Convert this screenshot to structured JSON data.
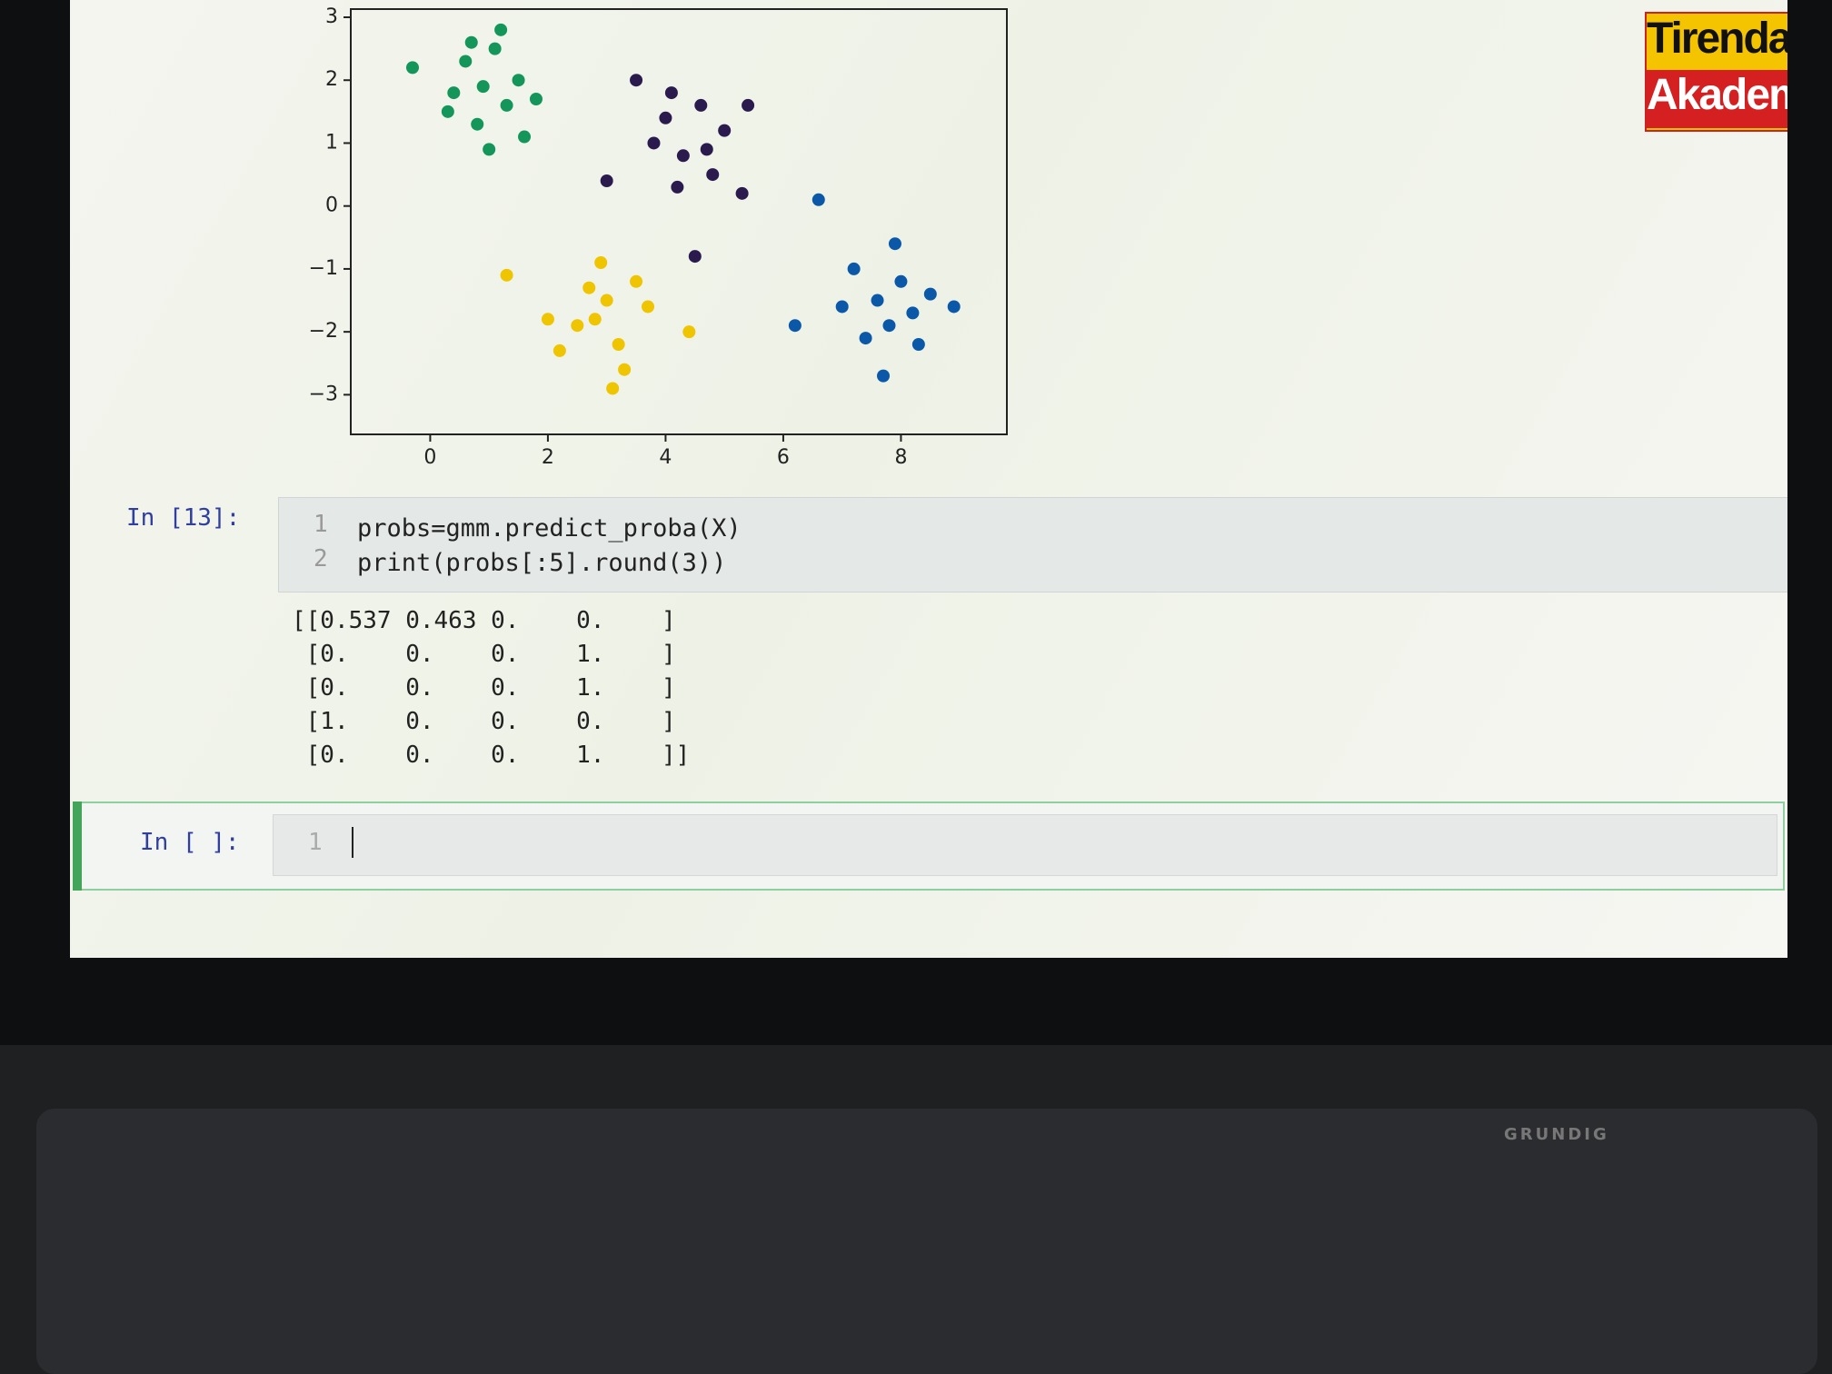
{
  "plot": {
    "type": "scatter",
    "xlim": [
      -1.35,
      9.8
    ],
    "ylim": [
      -3.63,
      3.13
    ],
    "xticks": [
      0,
      2,
      4,
      6,
      8
    ],
    "yticks": [
      3,
      2,
      1,
      0,
      {
        "value": -1,
        "label": "−1"
      },
      {
        "value": -2,
        "label": "−2"
      },
      {
        "value": -3,
        "label": "−3"
      }
    ],
    "series": [
      {
        "color": "#14955a",
        "x": [
          0.6,
          0.9,
          1.1,
          1.3,
          0.8,
          1.5,
          0.4,
          1.0,
          1.2,
          0.7,
          1.6,
          -0.3,
          0.3,
          1.8
        ],
        "y": [
          2.3,
          1.9,
          2.5,
          1.6,
          1.3,
          2.0,
          1.8,
          0.9,
          2.8,
          2.6,
          1.1,
          2.2,
          1.5,
          1.7
        ]
      },
      {
        "color": "#2b1a4d",
        "x": [
          3.5,
          4.0,
          4.3,
          4.6,
          5.0,
          4.2,
          3.8,
          4.8,
          5.3,
          4.5,
          3.0,
          4.1,
          5.4,
          4.7
        ],
        "y": [
          2.0,
          1.4,
          0.8,
          1.6,
          1.2,
          0.3,
          1.0,
          0.5,
          0.2,
          -0.8,
          0.4,
          1.8,
          1.6,
          0.9
        ]
      },
      {
        "color": "#efc400",
        "x": [
          2.8,
          3.0,
          3.2,
          2.5,
          3.5,
          2.2,
          3.7,
          3.1,
          2.9,
          1.3,
          2.0,
          4.4,
          3.3,
          2.7
        ],
        "y": [
          -1.8,
          -1.5,
          -2.2,
          -1.9,
          -1.2,
          -2.3,
          -1.6,
          -2.9,
          -0.9,
          -1.1,
          -1.8,
          -2.0,
          -2.6,
          -1.3
        ]
      },
      {
        "color": "#0b58a8",
        "x": [
          7.6,
          7.8,
          8.0,
          8.2,
          7.4,
          7.9,
          8.5,
          7.2,
          8.3,
          7.0,
          7.7,
          8.9,
          6.2,
          6.6
        ],
        "y": [
          -1.5,
          -1.9,
          -1.2,
          -1.7,
          -2.1,
          -0.6,
          -1.4,
          -1.0,
          -2.2,
          -1.6,
          -2.7,
          -1.6,
          -1.9,
          0.1
        ]
      }
    ]
  },
  "cell": {
    "prompt": "In [13]:",
    "line_numbers": [
      "1",
      "2"
    ],
    "code": [
      "probs=gmm.predict_proba(X)",
      "print(probs[:5].round(3))"
    ],
    "output": [
      "[[0.537 0.463 0.    0.    ]",
      " [0.    0.    0.    1.    ]",
      " [0.    0.    0.    1.    ]",
      " [1.    0.    0.    0.    ]",
      " [0.    0.    0.    1.    ]]"
    ]
  },
  "empty_cell": {
    "prompt": "In [ ]:",
    "line_number": "1"
  },
  "logo": {
    "line1": "Tirendaz",
    "line2": "Akademi"
  },
  "keyboard_brand": "GRUNDIG"
}
